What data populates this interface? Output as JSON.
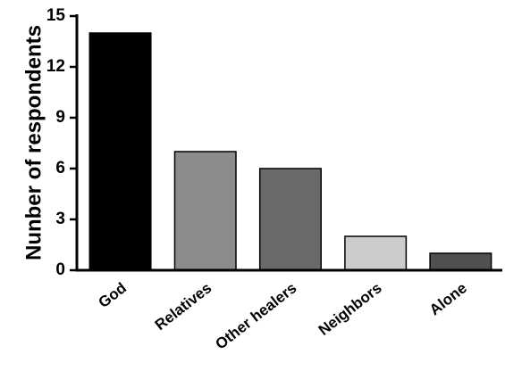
{
  "chart_data": {
    "type": "bar",
    "title": "",
    "xlabel": "",
    "ylabel": "Nunber of respondents",
    "categories": [
      "God",
      "Relatives",
      "Other healers",
      "Neighbors",
      "Alone"
    ],
    "values": [
      14,
      7,
      6,
      2,
      1
    ],
    "ylim": [
      0,
      15
    ],
    "yticks": [
      0,
      3,
      6,
      9,
      12,
      15
    ],
    "grid": false,
    "bar_colors": [
      "#000000",
      "#8c8c8c",
      "#6a6a6a",
      "#cccccc",
      "#505050"
    ]
  }
}
